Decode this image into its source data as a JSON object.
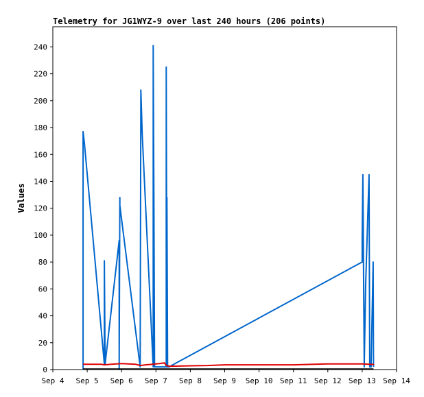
{
  "chart_data": {
    "type": "line",
    "title": "Telemetry for JG1WYZ-9 over last 240 hours (206 points)",
    "xlabel": "",
    "ylabel": "Values",
    "x_ticks": [
      "Sep 4",
      "Sep 5",
      "Sep 6",
      "Sep 7",
      "Sep 8",
      "Sep 9",
      "Sep 10",
      "Sep 11",
      "Sep 12",
      "Sep 13",
      "Sep 14"
    ],
    "xlim": [
      4.0,
      14.0
    ],
    "ylim": [
      0,
      255
    ],
    "y_ticks": [
      0,
      20,
      40,
      60,
      80,
      100,
      120,
      140,
      160,
      180,
      200,
      220,
      240
    ],
    "grid": false,
    "legend": "none",
    "series": [
      {
        "color": "#0066cc",
        "x": [
          4.88,
          4.88,
          4.92,
          5.5,
          5.5,
          5.52,
          5.93,
          5.93,
          5.95,
          5.95,
          6.54,
          6.56,
          6.6,
          6.92,
          6.92,
          6.94,
          6.96,
          7.3,
          7.3,
          7.32,
          7.32,
          7.34,
          7.38,
          13.0,
          13.0,
          13.02,
          13.06,
          13.1,
          13.2,
          13.22,
          13.26,
          13.32,
          13.33
        ],
        "y": [
          0,
          177,
          168,
          4,
          81,
          4,
          96,
          0,
          128,
          122,
          2,
          208,
          175,
          2,
          241,
          130,
          2,
          2,
          225,
          2,
          128,
          2,
          2,
          80,
          97,
          145,
          2,
          62,
          145,
          2,
          2,
          80,
          2
        ]
      },
      {
        "color": "#dd0000",
        "x": [
          4.88,
          5.4,
          5.5,
          5.7,
          6.0,
          6.4,
          6.55,
          6.7,
          6.9,
          7.1,
          7.25,
          7.3,
          7.4,
          8.0,
          8.5,
          9.0,
          10.0,
          11.0,
          11.6,
          12.0,
          13.0,
          13.2,
          13.35
        ],
        "y": [
          4,
          4,
          3.5,
          4,
          4.5,
          4,
          3,
          3.5,
          4,
          4.5,
          5,
          3,
          2.5,
          2.8,
          3,
          3.5,
          3.5,
          3.5,
          4,
          4.2,
          4.2,
          4,
          3.8
        ]
      },
      {
        "color": "#000000",
        "x": [
          4.88,
          13.33
        ],
        "y": [
          0.4,
          0.4
        ]
      }
    ]
  }
}
